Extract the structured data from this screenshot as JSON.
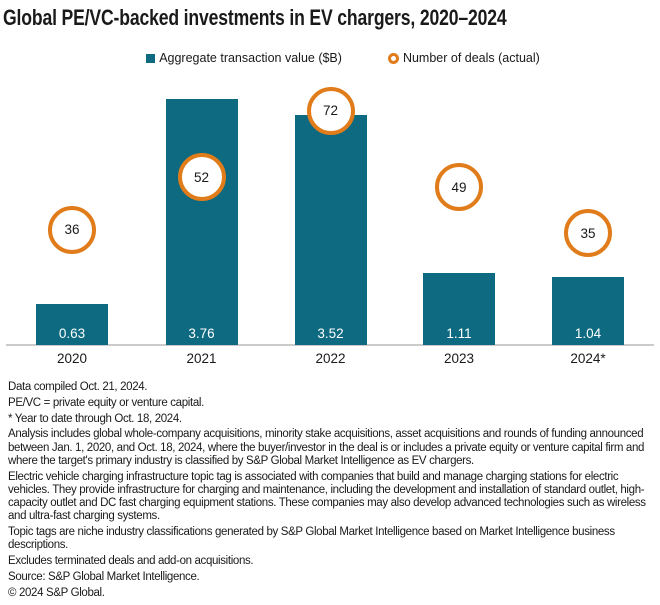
{
  "header": {
    "title": "Global PE/VC-backed investments in EV chargers, 2020–2024"
  },
  "legend": {
    "bar_label": "Aggregate transaction value ($B)",
    "deals_label": "Number of deals (actual)"
  },
  "chart_data": {
    "type": "bar",
    "title": "Global PE/VC-backed investments in EV chargers, 2020–2024",
    "categories": [
      "2020",
      "2021",
      "2022",
      "2023",
      "2024*"
    ],
    "series": [
      {
        "name": "Aggregate transaction value ($B)",
        "type": "bar",
        "values": [
          0.63,
          3.76,
          3.52,
          1.11,
          1.04
        ],
        "labels": [
          "0.63",
          "3.76",
          "3.52",
          "1.11",
          "1.04"
        ],
        "color": "#0d6a80"
      },
      {
        "name": "Number of deals (actual)",
        "type": "marker",
        "values": [
          36,
          52,
          72,
          49,
          35
        ],
        "labels": [
          "36",
          "52",
          "72",
          "49",
          "35"
        ],
        "color": "#e07c1a"
      }
    ],
    "xlabel": "",
    "ylabel": "",
    "ylim": [
      0,
      4
    ],
    "grid": false,
    "legend_position": "top-center"
  },
  "footnotes": [
    "Data compiled Oct. 21, 2024.",
    "PE/VC = private equity or venture capital.",
    "* Year to date through Oct. 18, 2024.",
    "Analysis includes global whole-company acquisitions, minority stake acquisitions, asset acquisitions and rounds of funding announced between Jan. 1, 2020, and Oct. 18, 2024, where the buyer/investor in the deal is or includes a private equity or venture capital firm and where the target's primary industry is classified by S&P Global Market Intelligence as EV chargers.",
    "Electric vehicle charging infrastructure topic tag is associated with companies that build and manage charging stations for electric vehicles. They provide infrastructure for charging and maintenance, including the development and installation of standard outlet, high-capacity outlet and DC fast charging equipment stations. These companies may also develop advanced technologies such as wireless and ultra-fast charging systems.",
    "Topic tags are niche industry classifications generated by S&P Global Market Intelligence based on Market Intelligence business descriptions.",
    "Excludes terminated deals and add-on acquisitions.",
    "Source: S&P Global Market Intelligence.",
    "© 2024 S&P Global."
  ],
  "colors": {
    "bar": "#0d6a80",
    "marker_ring": "#e07c1a",
    "axis_line": "#cbcbcb",
    "text": "#1a1a1a"
  }
}
